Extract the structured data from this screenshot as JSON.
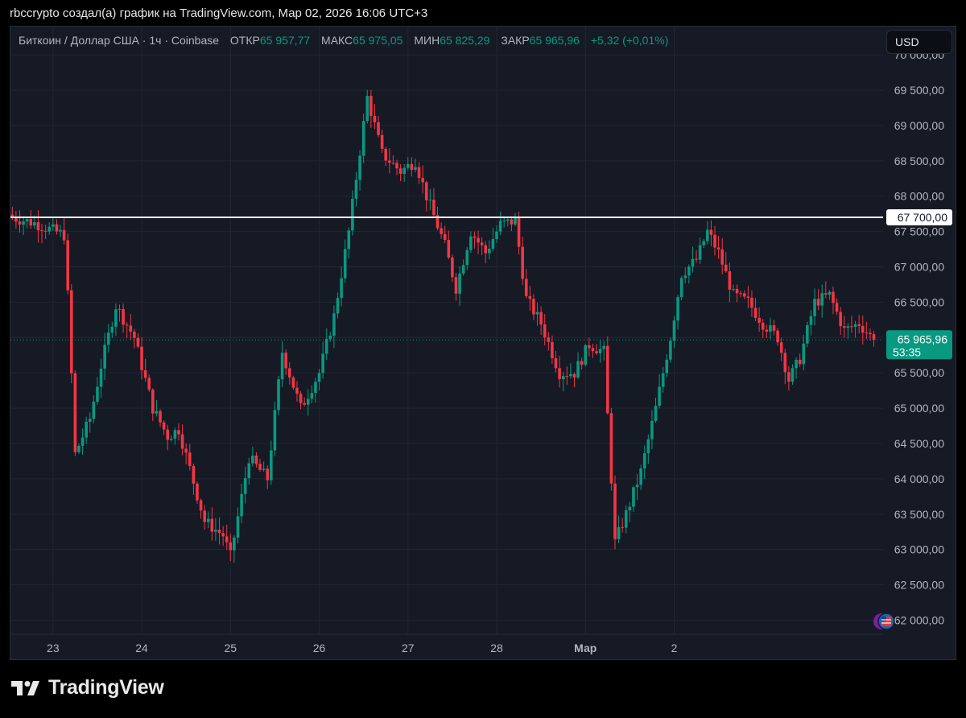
{
  "caption": "rbccrypto создал(а) график на TradingView.com, Мар 02, 2026 16:06 UTC+3",
  "legend": {
    "symbol": "Биткоин / Доллар США · 1ч · Coinbase",
    "open_label": "ОТКР",
    "open": "65 957,77",
    "high_label": "МАКС",
    "high": "65 975,05",
    "low_label": "МИН",
    "low": "65 825,29",
    "close_label": "ЗАКР",
    "close": "65 965,96",
    "change": "+5,32 (+0,01%)"
  },
  "currency": "USD",
  "brand": "TradingView",
  "colors": {
    "up": "#089981",
    "down": "#f23645",
    "background": "#161a25",
    "grid": "#232632",
    "level_line": "#ffffff"
  },
  "chart_data": {
    "type": "candlestick",
    "y_axis": {
      "min": 61800,
      "max": 70400,
      "ticks": [
        62000,
        62500,
        63000,
        63500,
        64000,
        64500,
        65000,
        65500,
        66000,
        66500,
        67000,
        67500,
        68000,
        68500,
        69000,
        69500,
        70000
      ],
      "tick_labels": [
        "62 000,00",
        "62 500,00",
        "63 000,00",
        "63 500,00",
        "64 000,00",
        "64 500,00",
        "65 000,00",
        "65 500,00",
        "66 000,00",
        "66 500,00",
        "67 000,00",
        "67 500,00",
        "68 000,00",
        "68 500,00",
        "69 000,00",
        "69 500,00",
        "70 000,00"
      ]
    },
    "x_axis": {
      "labels": [
        "23",
        "24",
        "25",
        "26",
        "27",
        "28",
        "Мар",
        "2"
      ]
    },
    "horizontal_line": {
      "value": 67700,
      "label": "67 700,00"
    },
    "last_price": {
      "value": 65965.96,
      "label": "65 965,96",
      "countdown": "53:35"
    },
    "anchors": [
      {
        "x": 0,
        "p": 67700
      },
      {
        "x": 6,
        "p": 67620
      },
      {
        "x": 14,
        "p": 67450
      },
      {
        "x": 15,
        "p": 66600
      },
      {
        "x": 17,
        "p": 64350
      },
      {
        "x": 21,
        "p": 64850
      },
      {
        "x": 24,
        "p": 65600
      },
      {
        "x": 28,
        "p": 66450
      },
      {
        "x": 33,
        "p": 66000
      },
      {
        "x": 38,
        "p": 65000
      },
      {
        "x": 42,
        "p": 64600
      },
      {
        "x": 45,
        "p": 64700
      },
      {
        "x": 52,
        "p": 63400
      },
      {
        "x": 57,
        "p": 63200
      },
      {
        "x": 59,
        "p": 62900
      },
      {
        "x": 64,
        "p": 64300
      },
      {
        "x": 69,
        "p": 64000
      },
      {
        "x": 73,
        "p": 65800
      },
      {
        "x": 78,
        "p": 65000
      },
      {
        "x": 83,
        "p": 65500
      },
      {
        "x": 87,
        "p": 66300
      },
      {
        "x": 91,
        "p": 67500
      },
      {
        "x": 96,
        "p": 69400
      },
      {
        "x": 100,
        "p": 68600
      },
      {
        "x": 105,
        "p": 68350
      },
      {
        "x": 109,
        "p": 68500
      },
      {
        "x": 112,
        "p": 68000
      },
      {
        "x": 117,
        "p": 67300
      },
      {
        "x": 120,
        "p": 66700
      },
      {
        "x": 124,
        "p": 67500
      },
      {
        "x": 128,
        "p": 67200
      },
      {
        "x": 132,
        "p": 67600
      },
      {
        "x": 136,
        "p": 67650
      },
      {
        "x": 139,
        "p": 66550
      },
      {
        "x": 143,
        "p": 66200
      },
      {
        "x": 148,
        "p": 65500
      },
      {
        "x": 152,
        "p": 65500
      },
      {
        "x": 156,
        "p": 65900
      },
      {
        "x": 160,
        "p": 65800
      },
      {
        "x": 163,
        "p": 63100
      },
      {
        "x": 166,
        "p": 63500
      },
      {
        "x": 170,
        "p": 64100
      },
      {
        "x": 174,
        "p": 65000
      },
      {
        "x": 178,
        "p": 66000
      },
      {
        "x": 181,
        "p": 66900
      },
      {
        "x": 185,
        "p": 67100
      },
      {
        "x": 188,
        "p": 67500
      },
      {
        "x": 191,
        "p": 67200
      },
      {
        "x": 195,
        "p": 66600
      },
      {
        "x": 199,
        "p": 66500
      },
      {
        "x": 203,
        "p": 66200
      },
      {
        "x": 207,
        "p": 66000
      },
      {
        "x": 210,
        "p": 65400
      },
      {
        "x": 213,
        "p": 65700
      },
      {
        "x": 217,
        "p": 66500
      },
      {
        "x": 221,
        "p": 66600
      },
      {
        "x": 225,
        "p": 66100
      },
      {
        "x": 229,
        "p": 66200
      },
      {
        "x": 233,
        "p": 65965.96
      }
    ]
  }
}
